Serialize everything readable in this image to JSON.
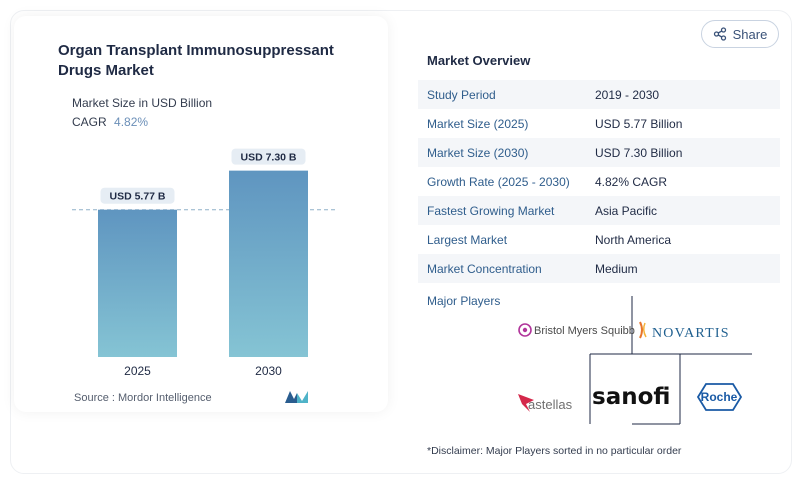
{
  "chart_data": {
    "type": "bar",
    "title": "Organ Transplant Immunosuppressant Drugs Market",
    "subtitle": "Market Size in USD Billion",
    "cagr_label": "CAGR",
    "cagr_value": "4.82%",
    "categories": [
      "2025",
      "2030"
    ],
    "values": [
      5.77,
      7.3
    ],
    "data_labels": [
      "USD 5.77 B",
      "USD 7.30 B"
    ],
    "ylim": [
      0,
      8.5
    ],
    "reference_line": 5.77,
    "bar_color": "#6ea3c7",
    "source": "Source :  Mordor Intelligence"
  },
  "share": {
    "label": "Share",
    "icon": "share-icon"
  },
  "overview": {
    "title": "Market Overview",
    "rows": [
      {
        "key": "Study Period",
        "value": "2019 - 2030"
      },
      {
        "key": "Market Size (2025)",
        "value": "USD 5.77 Billion"
      },
      {
        "key": "Market Size (2030)",
        "value": "USD 7.30 Billion"
      },
      {
        "key": "Growth Rate (2025 - 2030)",
        "value": "4.82% CAGR"
      },
      {
        "key": "Fastest Growing Market",
        "value": "Asia Pacific"
      },
      {
        "key": "Largest Market",
        "value": "North America"
      },
      {
        "key": "Market Concentration",
        "value": "Medium"
      }
    ]
  },
  "players": {
    "label": "Major Players",
    "logos": [
      "Bristol Myers Squibb",
      "NOVARTIS",
      "astellas",
      "sanofi",
      "Roche"
    ]
  },
  "disclaimer": "*Disclaimer: Major Players sorted in no particular order",
  "colors": {
    "accent": "#2f5d8c",
    "bar_top": "#6096c0",
    "bar_bottom": "#83c3d3"
  }
}
